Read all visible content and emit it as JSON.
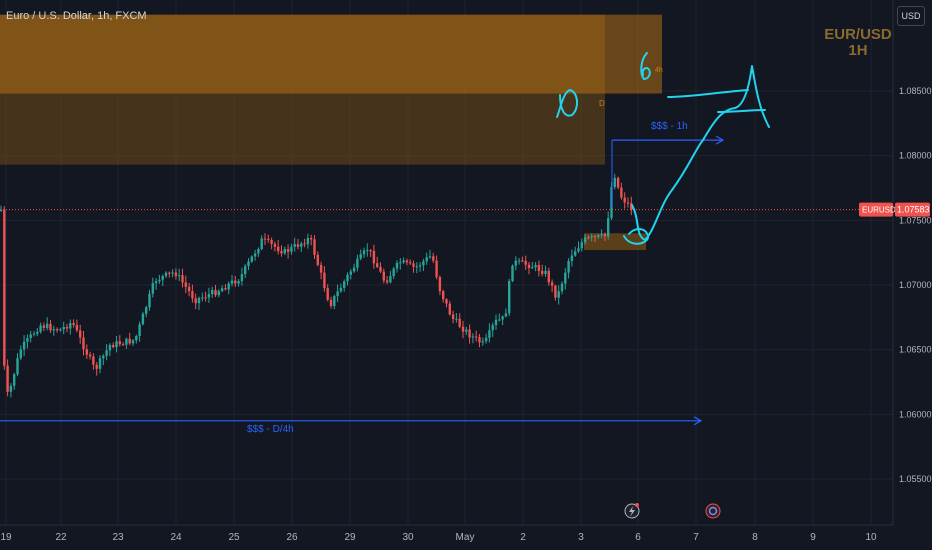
{
  "header": {
    "symbol_title": "Euro / U.S. Dollar, 1h, FXCM",
    "currency_button": "USD"
  },
  "watermark": {
    "line1": "EUR/USD",
    "line2": "1H"
  },
  "colors": {
    "background": "#131722",
    "grid": "#1f2330",
    "up": "#26a69a",
    "down": "#ef5350",
    "zone_fill": "#8a5a14",
    "blue": "#2962ff",
    "cyan_drawing": "#22d3ee",
    "zone_text": "#c77d1f"
  },
  "price_axis": {
    "ticks": [
      "1.08500",
      "1.08000",
      "1.07500",
      "1.07000",
      "1.06500",
      "1.06000",
      "1.05500"
    ],
    "current_symbol": "EURUSD",
    "current_price": "1.07583"
  },
  "time_axis": {
    "ticks": [
      "19",
      "22",
      "23",
      "24",
      "25",
      "26",
      "29",
      "30",
      "May",
      "2",
      "3",
      "6",
      "7",
      "8",
      "9",
      "10"
    ]
  },
  "annotations": {
    "ssl_1h": "$$$ - 1h",
    "ssl_d4h": "$$$ - D/4h",
    "zone_label_d": "D",
    "zone_label_4h": "4h",
    "handwritten_1": "6",
    "handwritten_2": "0"
  },
  "icons": [
    "lightning-bolt-icon",
    "event-icon"
  ],
  "chart_data": {
    "type": "candlestick",
    "title": "Euro / U.S. Dollar, 1h, FXCM",
    "x_range": [
      "19 Apr",
      "10 May"
    ],
    "ylim": [
      1.052,
      1.0915
    ],
    "grid": true,
    "current_price": 1.07583,
    "close_path_approx": [
      {
        "x": "19 Apr",
        "y": 1.065
      },
      {
        "x": "22 Apr",
        "y": 1.0655
      },
      {
        "x": "23 Apr",
        "y": 1.069
      },
      {
        "x": "24 Apr",
        "y": 1.0695
      },
      {
        "x": "25 Apr",
        "y": 1.0715
      },
      {
        "x": "26 Apr",
        "y": 1.0725
      },
      {
        "x": "29 Apr",
        "y": 1.071
      },
      {
        "x": "30 Apr",
        "y": 1.068
      },
      {
        "x": "1 May",
        "y": 1.0655
      },
      {
        "x": "2 May",
        "y": 1.0715
      },
      {
        "x": "3 May",
        "y": 1.076
      },
      {
        "x": "6 May",
        "y": 1.0758
      }
    ],
    "zones": [
      {
        "label": "D",
        "top": 1.0909,
        "bottom": 1.0793
      },
      {
        "label": "4h",
        "top": 1.0909,
        "bottom": 1.0848
      },
      {
        "label": "",
        "top": 1.074,
        "bottom": 1.0727
      }
    ],
    "liquidity_lines": [
      {
        "label": "$$$ - 1h",
        "price": 1.0812
      },
      {
        "label": "$$$ - D/4h",
        "price": 1.0595
      }
    ]
  }
}
